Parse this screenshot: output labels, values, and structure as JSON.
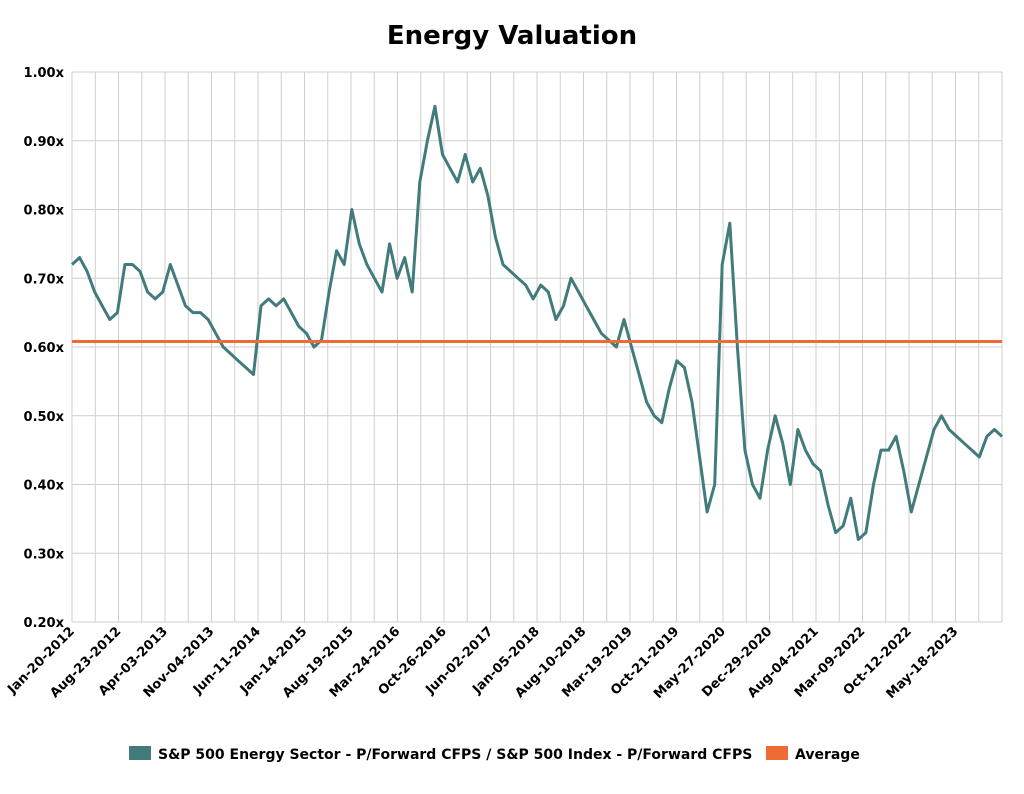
{
  "chart_data": {
    "type": "line",
    "title": "Energy Valuation",
    "xlabel": "",
    "ylabel": "",
    "ylim": [
      0.2,
      1.0
    ],
    "y_ticks": [
      "0.20x",
      "0.30x",
      "0.40x",
      "0.50x",
      "0.60x",
      "0.70x",
      "0.80x",
      "0.90x",
      "1.00x"
    ],
    "y_tick_values": [
      0.2,
      0.3,
      0.4,
      0.5,
      0.6,
      0.7,
      0.8,
      0.9,
      1.0
    ],
    "x_ticks": [
      "Jan-20-2012",
      "Aug-23-2012",
      "Apr-03-2013",
      "Nov-04-2013",
      "Jun-11-2014",
      "Jan-14-2015",
      "Aug-19-2015",
      "Mar-24-2016",
      "Oct-26-2016",
      "Jun-02-2017",
      "Jan-05-2018",
      "Aug-10-2018",
      "Mar-19-2019",
      "Oct-21-2019",
      "May-27-2020",
      "Dec-29-2020",
      "Aug-04-2021",
      "Mar-09-2022",
      "Oct-12-2022",
      "May-18-2023"
    ],
    "grid": true,
    "legend_position": "bottom",
    "series": [
      {
        "name": "S&P 500 Energy Sector - P/Forward CFPS / S&P 500 Index - P/Forward CFPS",
        "color": "#427b7b",
        "values": [
          0.72,
          0.73,
          0.71,
          0.68,
          0.66,
          0.64,
          0.65,
          0.72,
          0.72,
          0.71,
          0.68,
          0.67,
          0.68,
          0.72,
          0.69,
          0.66,
          0.65,
          0.65,
          0.64,
          0.62,
          0.6,
          0.59,
          0.58,
          0.57,
          0.56,
          0.66,
          0.67,
          0.66,
          0.67,
          0.65,
          0.63,
          0.62,
          0.6,
          0.61,
          0.68,
          0.74,
          0.72,
          0.8,
          0.75,
          0.72,
          0.7,
          0.68,
          0.75,
          0.7,
          0.73,
          0.68,
          0.84,
          0.9,
          0.95,
          0.88,
          0.86,
          0.84,
          0.88,
          0.84,
          0.86,
          0.82,
          0.76,
          0.72,
          0.71,
          0.7,
          0.69,
          0.67,
          0.69,
          0.68,
          0.64,
          0.66,
          0.7,
          0.68,
          0.66,
          0.64,
          0.62,
          0.61,
          0.6,
          0.64,
          0.6,
          0.56,
          0.52,
          0.5,
          0.49,
          0.54,
          0.58,
          0.57,
          0.52,
          0.44,
          0.36,
          0.4,
          0.72,
          0.78,
          0.6,
          0.45,
          0.4,
          0.38,
          0.45,
          0.5,
          0.46,
          0.4,
          0.48,
          0.45,
          0.43,
          0.42,
          0.37,
          0.33,
          0.34,
          0.38,
          0.32,
          0.33,
          0.4,
          0.45,
          0.45,
          0.47,
          0.42,
          0.36,
          0.4,
          0.44,
          0.48,
          0.5,
          0.48,
          0.47,
          0.46,
          0.45,
          0.44,
          0.47,
          0.48,
          0.47
        ]
      },
      {
        "name": "Average",
        "color": "#ee6b35",
        "value": 0.608
      }
    ]
  }
}
